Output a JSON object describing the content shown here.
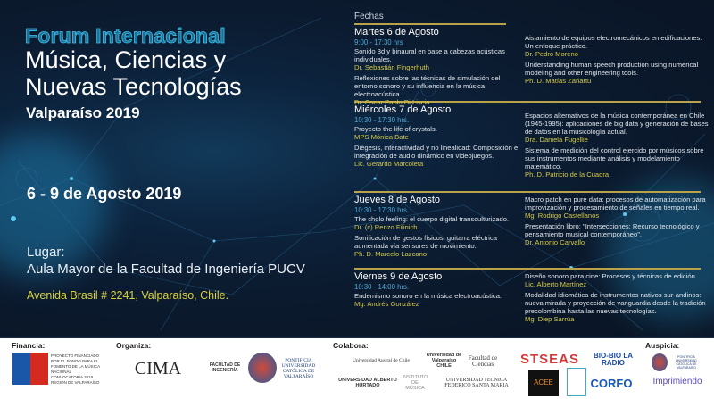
{
  "header": {
    "forum": "Forum Internacional",
    "title_line1": "Música, Ciencias y",
    "title_line2": "Nuevas Tecnologías",
    "city": "Valparaíso 2019"
  },
  "event": {
    "dates": "6 - 9 de Agosto 2019",
    "lugar_label": "Lugar:",
    "lugar": "Aula Mayor de la Facultad de Ingeniería PUCV",
    "address": "Avenida Brasil # 2241, Valparaíso, Chile."
  },
  "schedule": {
    "heading": "Fechas",
    "days": [
      {
        "day": "Martes 6 de Agosto",
        "time": "9:00 - 17:30 hrs",
        "left": [
          {
            "title": "Sonido 3d y binaural en base a cabezas acústicas individuales.",
            "speaker": "Dr. Sebastián Fingerhuth"
          },
          {
            "title": "Reflexiones sobre las técnicas de simulación del entorno sonoro y su influencia en la música electroacústica.",
            "speaker": "Dr. Oscar Pablo Di Liscia"
          }
        ],
        "right": [
          {
            "title": "Aislamiento de equipos electromecánicos en edificaciones: Un enfoque práctico.",
            "speaker": "Dr. Pedro Moreno"
          },
          {
            "title": "Understanding human speech production using numerical modeling and other engineering tools.",
            "speaker": "Ph. D. Matías Zañartu"
          }
        ]
      },
      {
        "day": "Miércoles 7 de Agosto",
        "time": "10:30 - 17:30 hrs.",
        "left": [
          {
            "title": "Proyecto the life of crystals.",
            "speaker": "MPS Mónica Bate"
          },
          {
            "title": "Diégesis, interactividad y no linealidad: Composición e integración de audio dinámico en videojuegos.",
            "speaker": "Lic. Gerardo Marcoleta"
          }
        ],
        "right": [
          {
            "title": "Espacios alternativos de la música contemporánea en Chile (1945-1995): aplicaciones de big data y generación de bases de datos en la musicología actual.",
            "speaker": "Dra. Daniela Fugellie"
          },
          {
            "title": "Sistema de medición del control ejercido por músicos sobre sus instrumentos mediante análisis y modelamiento matemático.",
            "speaker": "Ph. D. Patricio de la Cuadra"
          }
        ]
      },
      {
        "day": "Jueves 8 de Agosto",
        "time": "10:30 - 17:30 hrs.",
        "left": [
          {
            "title": "The cholo feeling: el cuerpo digital transculturizado.",
            "speaker": "Dr. (c) Renzo Filinich"
          },
          {
            "title": "Sonificación de gestos físicos: guitarra eléctrica aumentada vía sensores de movimiento.",
            "speaker": "Ph. D. Marcelo Lazcano"
          }
        ],
        "right": [
          {
            "title": "Macro patch en pure data: procesos de automatización para improvización y procesamiento de señales en tiempo real.",
            "speaker": "Mg. Rodrigo Castellanos"
          },
          {
            "title": "Presentación libro: \"Intersecciones: Recurso tecnológico y pensamiento musical contemporáneo\".",
            "speaker": "Dr. Antonio Carvallo"
          }
        ]
      },
      {
        "day": "Viernes 9 de Agosto",
        "time": "10:30 - 14:00 hrs.",
        "left": [
          {
            "title": "Endemismo sonoro en la música electroacústica.",
            "speaker": "Mg. Andrés González"
          }
        ],
        "right": [
          {
            "title": "Diseño sonoro para cine: Procesos y técnicas de edición.",
            "speaker": "Lic. Alberto Martínez"
          },
          {
            "title": "Modalidad idiomática de instrumentos nativos sur-andinos: nueva mirada y proyección de vanguardia desde la tradición precolombina hasta las nuevas tecnologías.",
            "speaker": "Mg. Diep Sarrúa"
          }
        ]
      }
    ]
  },
  "footer": {
    "financia_label": "Financia:",
    "financia_text": "PROYECTO FINANCIADO POR EL FONDO PARA EL FOMENTO DE LA MÚSICA NACIONAL CONVOCATORIA 2019 REGIÓN DE VALPARAÍSO",
    "organiza_label": "Organiza:",
    "cima": "CIMA",
    "facultad": "FACULTAD DE INGENIERÍA",
    "pucv": "PONTIFICIA UNIVERSIDAD CATÓLICA DE VALPARAÍSO",
    "colabora_label": "Colabora:",
    "austral": "Universidad Austral de Chile",
    "uv": "Universidad de Valparaíso CHILE",
    "ciencias": "Facultad de Ciencias",
    "stseas": "STSEAS",
    "biobio": "BIO-BIO LA RADIO",
    "uah": "UNIVERSIDAD ALBERTO HURTADO",
    "instituto": "INSTITUTO DE MÚSICA",
    "utfsm": "UNIVERSIDAD TECNICA FEDERICO SANTA MARIA",
    "acee": "ACEE",
    "corfo": "CORFO",
    "auspicia_label": "Auspicia:",
    "pucv2": "PONTIFICIA UNIVERSIDAD CATÓLICA DE VALPARAÍSO",
    "imprimiendo": "Imprimiendo"
  },
  "colors": {
    "background": "#0b1a2e",
    "accent_cyan": "#27b7e6",
    "gold": "#b9a24a",
    "speaker": "#d3c84a",
    "time": "#4fa9d6"
  }
}
